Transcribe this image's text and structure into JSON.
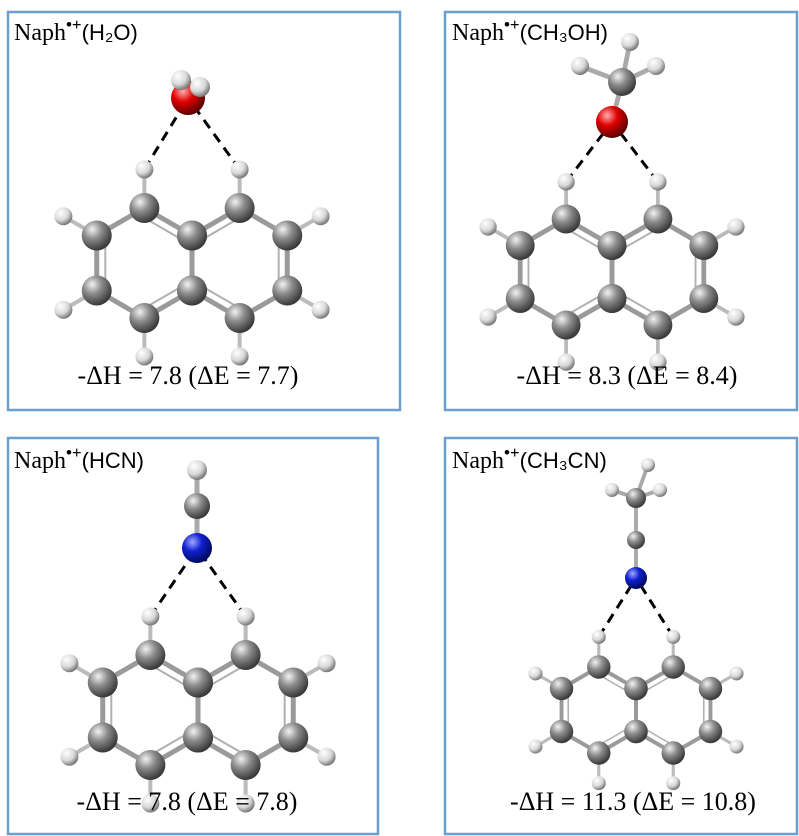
{
  "panels": [
    {
      "title": {
        "name": "Naph",
        "charge": "•+",
        "ligand": "(H₂O)"
      },
      "energy": "-ΔH = 7.8 (ΔE = 7.7)"
    },
    {
      "title": {
        "name": "Naph",
        "charge": "•+",
        "ligand": "(CH₃OH)"
      },
      "energy": "-ΔH = 8.3 (ΔE = 8.4)"
    },
    {
      "title": {
        "name": "Naph",
        "charge": "•+",
        "ligand": "(HCN)"
      },
      "energy": "-ΔH = 7.8 (ΔE = 7.8)"
    },
    {
      "title": {
        "name": "Naph",
        "charge": "•+",
        "ligand": "(CH₃CN)"
      },
      "energy": "-ΔH = 11.3 (ΔE = 10.8)"
    }
  ]
}
